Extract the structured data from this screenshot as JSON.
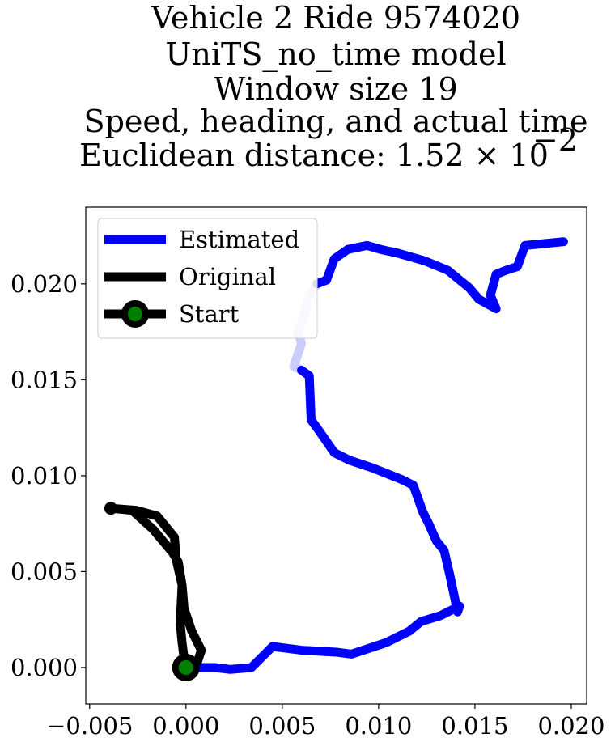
{
  "chart_data": {
    "type": "line",
    "title_lines": [
      "Vehicle 2 Ride 9574020",
      "UniTS_no_time model",
      "Window size 19",
      "Speed, heading, and actual time",
      "Euclidean distance: 1.52 × 10",
      "−2"
    ],
    "xlabel": "",
    "ylabel": "",
    "xlim": [
      -0.0052,
      0.0208
    ],
    "ylim": [
      -0.0019,
      0.024
    ],
    "x_ticks": [
      -0.005,
      0.0,
      0.005,
      0.01,
      0.015,
      0.02
    ],
    "x_tick_labels": [
      "−0.005",
      "0.000",
      "0.005",
      "0.010",
      "0.015",
      "0.020"
    ],
    "y_ticks": [
      0.0,
      0.005,
      0.01,
      0.015,
      0.02
    ],
    "y_tick_labels": [
      "0.000",
      "0.005",
      "0.010",
      "0.015",
      "0.020"
    ],
    "grid": false,
    "legend_position": "upper-left",
    "series": [
      {
        "name": "Estimated",
        "color": "#0000ff",
        "points": [
          [
            0.0,
            0.0
          ],
          [
            0.0015,
            0.0
          ],
          [
            0.0023,
            -0.0001
          ],
          [
            0.0034,
            0.0
          ],
          [
            0.0045,
            0.0011
          ],
          [
            0.006,
            0.0009
          ],
          [
            0.0078,
            0.0008
          ],
          [
            0.0086,
            0.0007
          ],
          [
            0.0104,
            0.0013
          ],
          [
            0.0116,
            0.0019
          ],
          [
            0.0122,
            0.0024
          ],
          [
            0.0132,
            0.0027
          ],
          [
            0.0142,
            0.0032
          ],
          [
            0.0141,
            0.0029
          ],
          [
            0.0137,
            0.0048
          ],
          [
            0.0134,
            0.0061
          ],
          [
            0.013,
            0.0066
          ],
          [
            0.0126,
            0.0075
          ],
          [
            0.0123,
            0.0081
          ],
          [
            0.0118,
            0.0095
          ],
          [
            0.0112,
            0.0098
          ],
          [
            0.0097,
            0.0104
          ],
          [
            0.0085,
            0.0108
          ],
          [
            0.0077,
            0.0112
          ],
          [
            0.0068,
            0.0125
          ],
          [
            0.0065,
            0.0129
          ],
          [
            0.0064,
            0.0152
          ],
          [
            0.006,
            0.0155
          ],
          [
            0.0056,
            0.0157
          ],
          [
            0.006,
            0.0169
          ],
          [
            0.0058,
            0.0175
          ],
          [
            0.0061,
            0.0182
          ],
          [
            0.0064,
            0.0194
          ],
          [
            0.0068,
            0.02
          ],
          [
            0.0073,
            0.0202
          ],
          [
            0.0077,
            0.0213
          ],
          [
            0.0084,
            0.0218
          ],
          [
            0.0094,
            0.022
          ],
          [
            0.0101,
            0.0218
          ],
          [
            0.011,
            0.0216
          ],
          [
            0.0124,
            0.0212
          ],
          [
            0.0136,
            0.0207
          ],
          [
            0.0147,
            0.0198
          ],
          [
            0.0152,
            0.0192
          ],
          [
            0.0161,
            0.0187
          ],
          [
            0.0158,
            0.0194
          ],
          [
            0.0161,
            0.0205
          ],
          [
            0.0166,
            0.0207
          ],
          [
            0.0172,
            0.0209
          ],
          [
            0.0176,
            0.022
          ],
          [
            0.0196,
            0.0222
          ]
        ],
        "faded_segment_index_range": [
          27,
          33
        ]
      },
      {
        "name": "Original",
        "color": "#000000",
        "points": [
          [
            0.0,
            0.0
          ],
          [
            0.0006,
            0.0003
          ],
          [
            0.0008,
            0.0009
          ],
          [
            0.0003,
            0.0019
          ],
          [
            -0.0001,
            0.0031
          ],
          [
            -0.0002,
            0.0043
          ],
          [
            -0.0004,
            0.0055
          ],
          [
            -0.0007,
            0.006
          ],
          [
            -0.0017,
            0.0072
          ],
          [
            -0.0028,
            0.0082
          ],
          [
            -0.0039,
            0.0083
          ],
          [
            -0.0026,
            0.0082
          ],
          [
            -0.0015,
            0.0079
          ],
          [
            -0.0006,
            0.0068
          ],
          [
            -0.0005,
            0.0056
          ],
          [
            -0.0002,
            0.0043
          ],
          [
            -0.0003,
            0.0023
          ],
          [
            -0.0002,
            0.0013
          ],
          [
            -0.0001,
            0.0005
          ],
          [
            0.0,
            0.0
          ]
        ]
      },
      {
        "name": "Start",
        "color": "#000000",
        "marker_fill": "#008000",
        "points": [
          [
            0.0,
            0.0
          ]
        ]
      }
    ]
  }
}
